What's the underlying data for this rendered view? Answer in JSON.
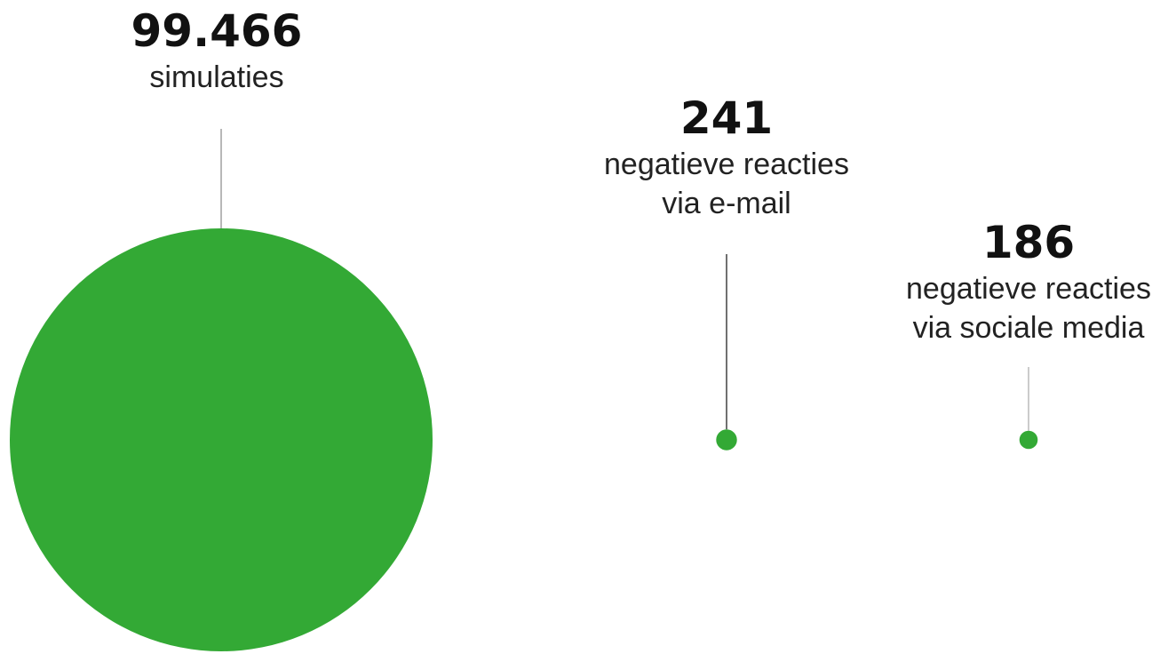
{
  "chart_data": {
    "type": "bubble",
    "color": "#33a935",
    "items": [
      {
        "value": 99466,
        "value_label": "99.466",
        "label_lines": [
          "simulaties"
        ]
      },
      {
        "value": 241,
        "value_label": "241",
        "label_lines": [
          "negatieve reacties",
          "via e-mail"
        ]
      },
      {
        "value": 186,
        "value_label": "186",
        "label_lines": [
          "negatieve reacties",
          "via sociale media"
        ]
      }
    ]
  }
}
